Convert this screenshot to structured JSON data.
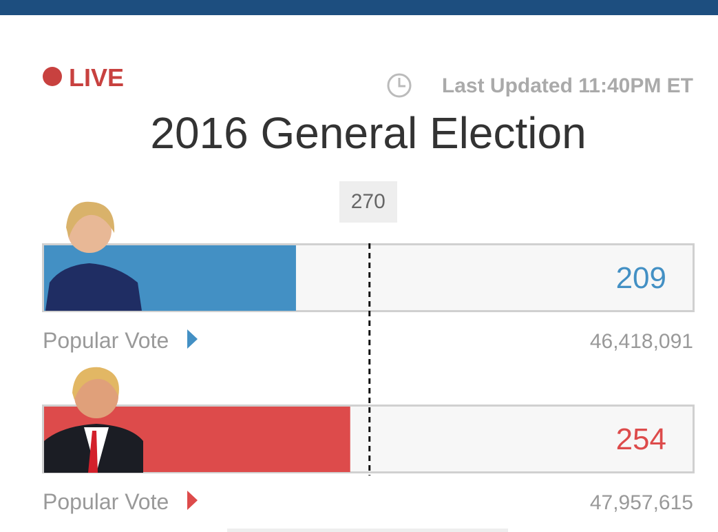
{
  "live": "LIVE",
  "last_updated": "Last Updated 11:40PM ET",
  "chart_data": {
    "type": "bar",
    "orientation": "horizontal",
    "title": "2016 General Election",
    "xlim": [
      0,
      538
    ],
    "threshold": 270,
    "values": [
      209,
      254
    ],
    "colors": [
      "#4390c4",
      "#dd4b4b"
    ],
    "row_label": "Popular Vote",
    "popular_vote": [
      "46,418,091",
      "47,957,615"
    ]
  }
}
